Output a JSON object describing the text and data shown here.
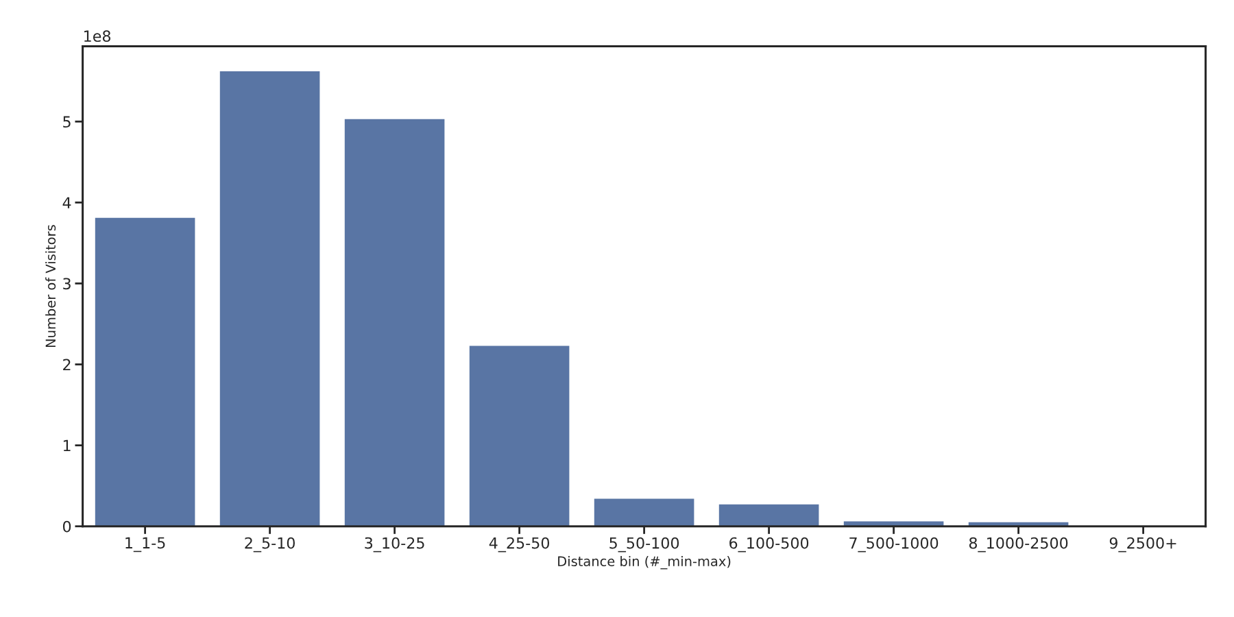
{
  "chart_data": {
    "type": "bar",
    "xlabel": "Distance bin (#_min-max)",
    "ylabel": "Number of Visitors",
    "categories": [
      "1_1-5",
      "2_5-10",
      "3_10-25",
      "4_25-50",
      "5_50-100",
      "6_100-500",
      "7_500-1000",
      "8_1000-2500",
      "9_2500+"
    ],
    "values": [
      3.81,
      5.62,
      5.03,
      2.23,
      0.34,
      0.27,
      0.06,
      0.05,
      0.0
    ],
    "color": "#5975a4",
    "ylim": [
      0,
      5.93
    ],
    "yticks": [
      0,
      1,
      2,
      3,
      4,
      5
    ],
    "annotations": [
      "1e8"
    ],
    "grid": false
  }
}
